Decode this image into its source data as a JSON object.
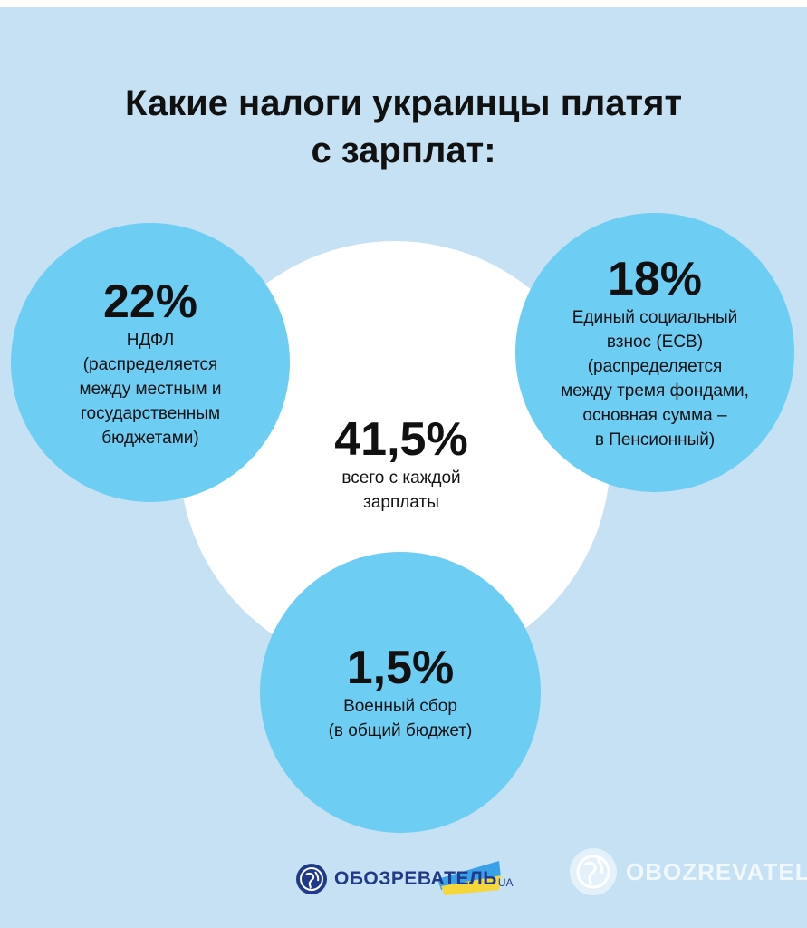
{
  "title": {
    "line1": "Какие налоги украинцы платят",
    "line2": "с зарплат:"
  },
  "left": {
    "percent": "22%",
    "lines": [
      "НДФЛ",
      "(распределяется",
      "между местным и",
      "государственным",
      "бюджетами)"
    ]
  },
  "right": {
    "percent": "18%",
    "lines": [
      "Единый социальный",
      "взнос (ЕСВ)",
      "(распределяется",
      "между тремя фондами,",
      "основная сумма –",
      "в Пенсионный)"
    ]
  },
  "center": {
    "percent": "41,5%",
    "lines": [
      "всего с каждой",
      "зарплаты"
    ]
  },
  "bottom": {
    "percent": "1,5%",
    "lines": [
      "Военный сбор",
      "(в общий бюджет)"
    ]
  },
  "logos": {
    "left_text": "ОБОЗРЕВАТЕЛЬ",
    "left_suffix": "UA",
    "watermark_text": "OBOZREVATEL"
  },
  "colors": {
    "background": "#c5e1f3",
    "circle_blue": "#6dcdf3",
    "center_circle": "#ffffff",
    "text": "#111111",
    "brand": "#1f3a8a"
  }
}
